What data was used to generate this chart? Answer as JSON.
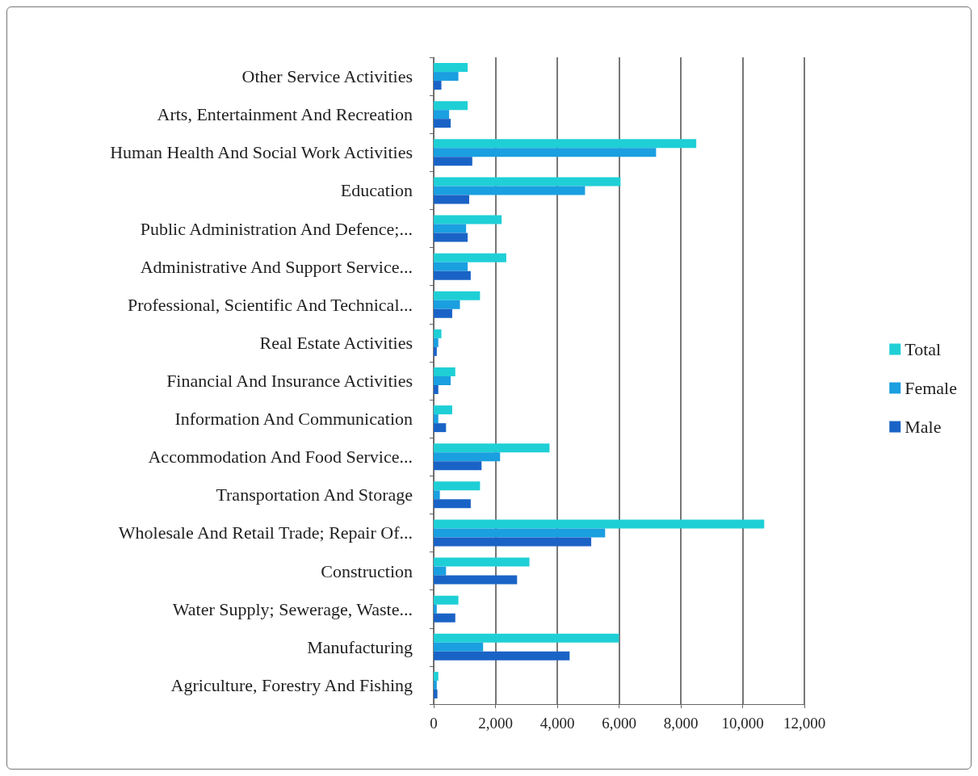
{
  "chart_data": {
    "type": "bar",
    "orientation": "horizontal",
    "categories": [
      "Other Service Activities",
      "Arts, Entertainment And Recreation",
      "Human Health And Social Work Activities",
      "Education",
      "Public Administration And Defence;...",
      "Administrative And Support Service...",
      "Professional, Scientific And Technical...",
      "Real Estate Activities",
      "Financial And Insurance Activities",
      "Information And Communication",
      "Accommodation And Food Service...",
      "Transportation And Storage",
      "Wholesale And Retail Trade; Repair Of...",
      "Construction",
      "Water Supply; Sewerage, Waste...",
      "Manufacturing",
      "Agriculture, Forestry And Fishing"
    ],
    "series": [
      {
        "name": "Total",
        "color": "#1fcfd6",
        "values": [
          1100,
          1100,
          8500,
          6050,
          2200,
          2350,
          1500,
          250,
          700,
          600,
          3750,
          1500,
          10700,
          3100,
          800,
          6000,
          150
        ]
      },
      {
        "name": "Female",
        "color": "#1a9fe0",
        "values": [
          800,
          500,
          7200,
          4900,
          1050,
          1100,
          850,
          150,
          550,
          150,
          2150,
          200,
          5550,
          400,
          100,
          1600,
          100
        ]
      },
      {
        "name": "Male",
        "color": "#1a63c6",
        "values": [
          250,
          550,
          1250,
          1150,
          1100,
          1200,
          600,
          100,
          150,
          400,
          1550,
          1200,
          5100,
          2700,
          700,
          4400,
          120
        ]
      }
    ],
    "xlim": [
      0,
      12000
    ],
    "xticks": [
      0,
      {
        "value": 2000,
        "label": "2,000"
      },
      {
        "value": 4000,
        "label": "4,000"
      },
      {
        "value": 6000,
        "label": "6,000"
      },
      {
        "value": 8000,
        "label": "8,000"
      },
      {
        "value": 10000,
        "label": "10,000"
      },
      {
        "value": 12000,
        "label": "12,000"
      }
    ],
    "grid": "x",
    "legend": "right"
  }
}
